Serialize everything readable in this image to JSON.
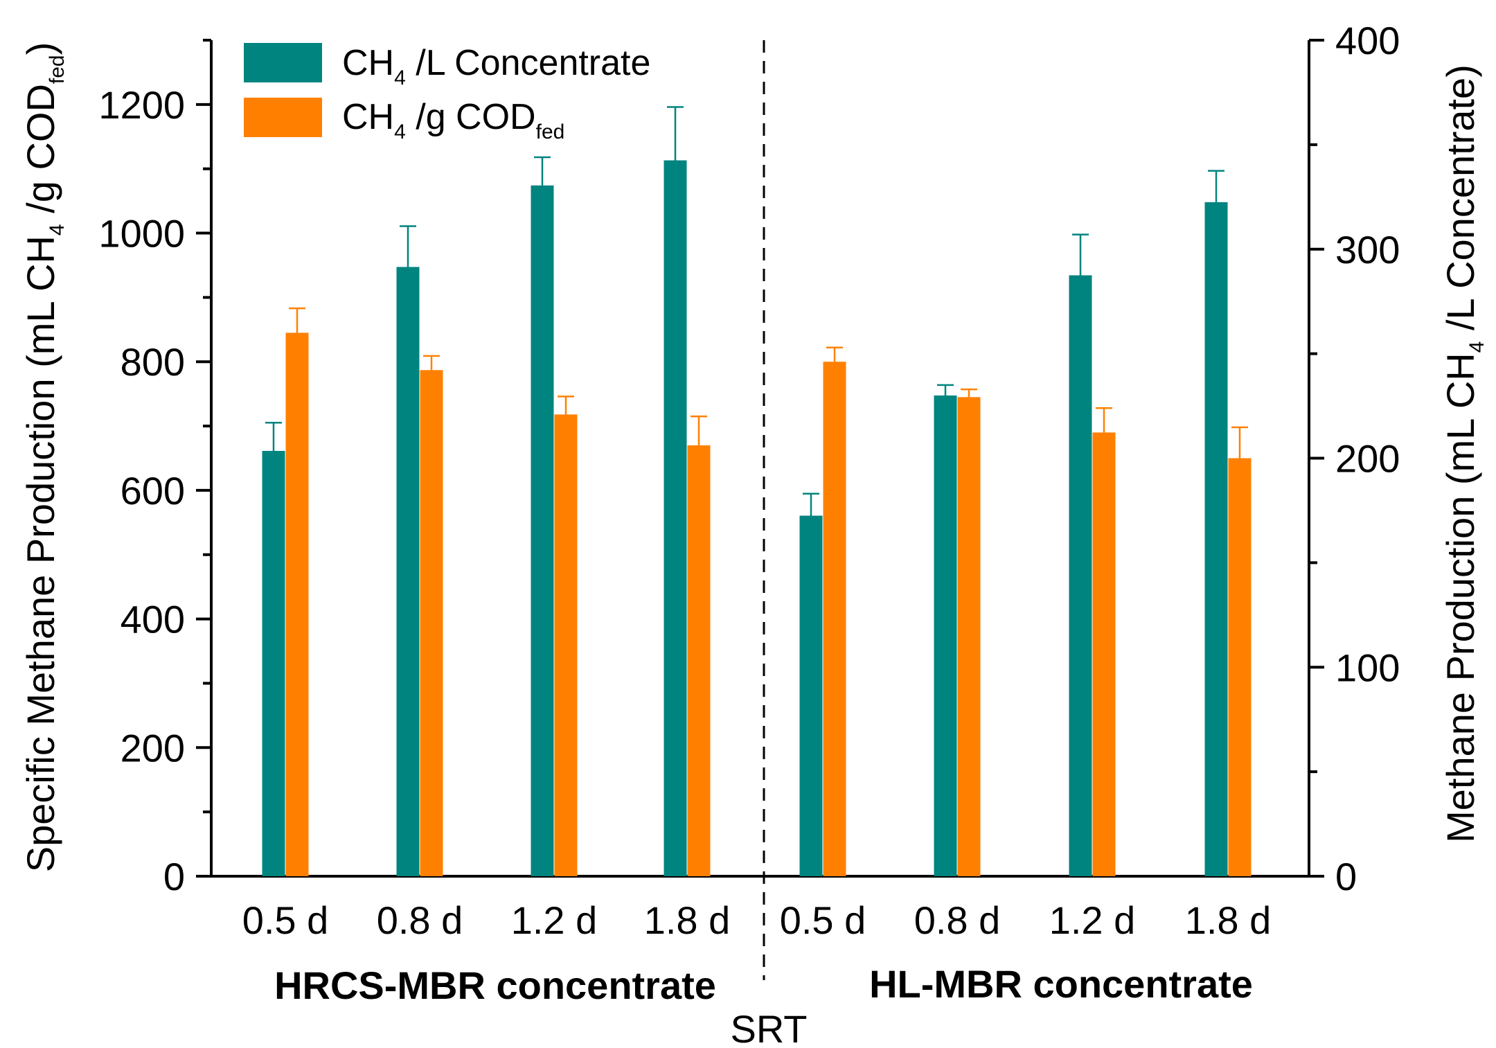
{
  "chart_data": {
    "type": "bar",
    "x_title": "SRT",
    "y_left_title": {
      "pre": "Specific Methane Production (mL CH",
      "sub1": "4",
      "mid": " /g COD",
      "sub2": "fed",
      "post": ")"
    },
    "y_right_title": {
      "pre": "Methane Production (mL CH",
      "sub1": "4",
      "post": " /L Concentrate)"
    },
    "y_left_range": [
      0,
      1300
    ],
    "y_left_ticks": [
      0,
      200,
      400,
      600,
      800,
      1000,
      1200
    ],
    "y_right_range": [
      0,
      400
    ],
    "y_right_ticks": [
      0,
      100,
      200,
      300,
      400
    ],
    "groups": [
      {
        "label": "HRCS-MBR concentrate",
        "categories": [
          "0.5 d",
          "0.8 d",
          "1.2 d",
          "1.8 d"
        ]
      },
      {
        "label": "HL-MBR concentrate",
        "categories": [
          "0.5 d",
          "0.8 d",
          "1.2 d",
          "1.8 d"
        ]
      }
    ],
    "series": [
      {
        "name": "CH4/L Concentrate",
        "legend": {
          "pre": "CH",
          "sub": "4",
          "post": " /L Concentrate"
        },
        "axis": "right",
        "color": "#00847f",
        "values": [
          203.5,
          291.5,
          330.5,
          342.5,
          172.5,
          230,
          287.5,
          322.5
        ],
        "errors": [
          13.5,
          19.5,
          13.5,
          25.5,
          10.5,
          5,
          19.5,
          15
        ]
      },
      {
        "name": "CH4/g CODfed",
        "legend": {
          "pre": "CH",
          "sub": "4",
          "mid": " /g COD",
          "sub2": "fed"
        },
        "axis": "left",
        "color": "#ff8000",
        "values": [
          845,
          787,
          718,
          670,
          800,
          745,
          690,
          650
        ],
        "errors": [
          38,
          22,
          28,
          45,
          22,
          12,
          38,
          48
        ]
      }
    ]
  }
}
